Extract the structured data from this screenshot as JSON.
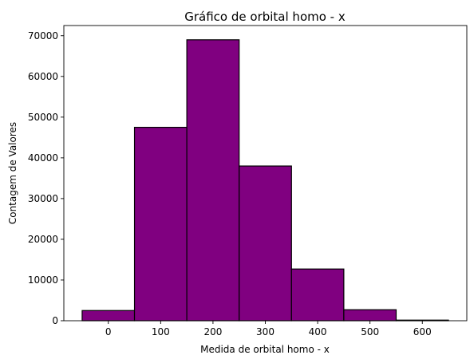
{
  "chart_data": {
    "type": "bar",
    "title": "Gráfico de orbital homo - x",
    "xlabel": "Medida de orbital homo - x",
    "ylabel": "Contagem de Valores",
    "bins": [
      {
        "start": -50,
        "end": 50,
        "value": 2500
      },
      {
        "start": 50,
        "end": 150,
        "value": 47500
      },
      {
        "start": 150,
        "end": 250,
        "value": 69000
      },
      {
        "start": 250,
        "end": 350,
        "value": 38000
      },
      {
        "start": 350,
        "end": 450,
        "value": 12700
      },
      {
        "start": 450,
        "end": 550,
        "value": 2700
      },
      {
        "start": 550,
        "end": 650,
        "value": 150
      }
    ],
    "xlim": [
      -85,
      685
    ],
    "ylim": [
      0,
      72500
    ],
    "xticks": [
      0,
      100,
      200,
      300,
      400,
      500,
      600
    ],
    "yticks": [
      0,
      10000,
      20000,
      30000,
      40000,
      50000,
      60000,
      70000
    ],
    "bar_color": "#800080",
    "edge_color": "#000000",
    "grid": false
  }
}
